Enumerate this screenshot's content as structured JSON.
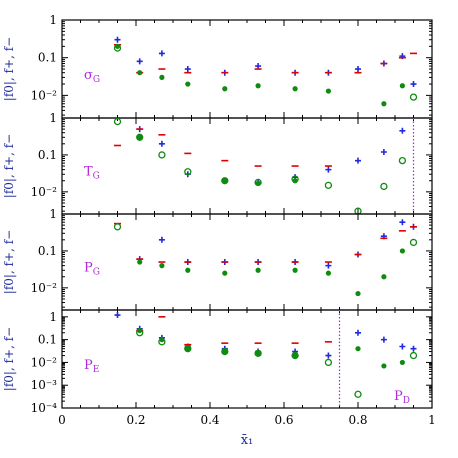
{
  "chart_data": [
    {
      "type": "scatter",
      "panel_label": "σ_G",
      "ylabel": "|f0|, f+, f−",
      "ylim_log10": [
        -2.6,
        0
      ],
      "ytick_labels": [
        "1",
        "0.1",
        "10⁻²"
      ],
      "ytick_values": [
        1,
        0.1,
        0.01
      ],
      "series": [
        {
          "marker": "plus",
          "color": "#1f2ae0",
          "x": [
            0.15,
            0.21,
            0.27,
            0.34,
            0.44,
            0.53,
            0.63,
            0.72,
            0.8,
            0.87,
            0.92,
            0.95
          ],
          "y": [
            0.3,
            0.08,
            0.13,
            0.05,
            0.04,
            0.06,
            0.04,
            0.04,
            0.05,
            0.07,
            0.11,
            0.02
          ]
        },
        {
          "marker": "dash",
          "color": "#e00000",
          "x": [
            0.15,
            0.21,
            0.27,
            0.34,
            0.44,
            0.53,
            0.63,
            0.72,
            0.8,
            0.87,
            0.92,
            0.95
          ],
          "y": [
            0.22,
            0.04,
            0.05,
            0.04,
            0.04,
            0.05,
            0.04,
            0.04,
            0.04,
            0.07,
            0.1,
            0.13
          ]
        },
        {
          "marker": "filled",
          "color": "#108a10",
          "x": [
            0.15,
            0.21,
            0.27,
            0.34,
            0.44,
            0.53,
            0.63,
            0.72,
            0.8,
            0.87,
            0.92
          ],
          "y": [
            0.2,
            0.04,
            0.03,
            0.02,
            0.015,
            0.018,
            0.015,
            0.013,
            0.002,
            0.006,
            0.018
          ]
        },
        {
          "marker": "open",
          "color": "#108a10",
          "x": [
            0.15,
            0.95
          ],
          "y": [
            0.18,
            0.009
          ]
        }
      ]
    },
    {
      "type": "scatter",
      "panel_label": "T_G",
      "ylabel": "|f0|, f+, f−",
      "ylim_log10": [
        -2.6,
        0
      ],
      "ytick_labels": [
        "1",
        "0.1",
        "10⁻²"
      ],
      "ytick_values": [
        1,
        0.1,
        0.01
      ],
      "vline_x": 0.95,
      "series": [
        {
          "marker": "plus",
          "color": "#1f2ae0",
          "x": [
            0.15,
            0.21,
            0.27,
            0.34,
            0.44,
            0.53,
            0.63,
            0.72,
            0.8,
            0.87,
            0.92,
            0.95
          ],
          "y": [
            1.8,
            0.5,
            0.2,
            0.03,
            0.02,
            0.018,
            0.025,
            0.04,
            0.07,
            0.12,
            0.45,
            1.2
          ]
        },
        {
          "marker": "dash",
          "color": "#e00000",
          "x": [
            0.15,
            0.21,
            0.27,
            0.34,
            0.44,
            0.53,
            0.63,
            0.72
          ],
          "y": [
            0.18,
            0.5,
            0.35,
            0.11,
            0.07,
            0.05,
            0.05,
            0.05
          ]
        },
        {
          "marker": "filled",
          "color": "#108a10",
          "x": [
            0.21,
            0.44,
            0.53,
            0.63
          ],
          "y": [
            0.3,
            0.02,
            0.017,
            0.02
          ]
        },
        {
          "marker": "open",
          "color": "#108a10",
          "x": [
            0.15,
            0.21,
            0.27,
            0.34,
            0.44,
            0.53,
            0.63,
            0.72,
            0.8,
            0.87,
            0.92
          ],
          "y": [
            0.8,
            0.3,
            0.1,
            0.035,
            0.02,
            0.018,
            0.022,
            0.015,
            0.003,
            0.014,
            0.07
          ]
        }
      ]
    },
    {
      "type": "scatter",
      "panel_label": "P_G",
      "ylabel": "|f0|, f+, f−",
      "ylim_log10": [
        -2.6,
        0
      ],
      "ytick_labels": [
        "1",
        "0.1",
        "10⁻²"
      ],
      "ytick_values": [
        1,
        0.1,
        0.01
      ],
      "series": [
        {
          "marker": "plus",
          "color": "#1f2ae0",
          "x": [
            0.15,
            0.21,
            0.27,
            0.34,
            0.44,
            0.53,
            0.63,
            0.72,
            0.8,
            0.87,
            0.92,
            0.95
          ],
          "y": [
            1.1,
            0.06,
            0.2,
            0.05,
            0.05,
            0.05,
            0.05,
            0.04,
            0.08,
            0.25,
            0.6,
            0.45
          ]
        },
        {
          "marker": "dash",
          "color": "#e00000",
          "x": [
            0.15,
            0.21,
            0.27,
            0.34,
            0.44,
            0.53,
            0.63,
            0.72,
            0.8,
            0.87,
            0.92,
            0.95
          ],
          "y": [
            0.55,
            0.06,
            0.05,
            0.05,
            0.05,
            0.05,
            0.05,
            0.05,
            0.08,
            0.22,
            0.35,
            0.45
          ]
        },
        {
          "marker": "filled",
          "color": "#108a10",
          "x": [
            0.21,
            0.27,
            0.34,
            0.44,
            0.53,
            0.63,
            0.72,
            0.8,
            0.87,
            0.92
          ],
          "y": [
            0.05,
            0.04,
            0.03,
            0.025,
            0.03,
            0.03,
            0.025,
            0.007,
            0.02,
            0.1
          ]
        },
        {
          "marker": "open",
          "color": "#108a10",
          "x": [
            0.15,
            0.95
          ],
          "y": [
            0.45,
            0.17
          ]
        }
      ]
    },
    {
      "type": "scatter",
      "panel_label": "P_E",
      "extra_label": "P_D",
      "ylabel": "|f0|, f+, f−",
      "ylim_log10": [
        -4,
        0.3
      ],
      "ytick_labels": [
        "1",
        "0.1",
        "10⁻²",
        "10⁻³",
        "10⁻⁴"
      ],
      "ytick_values": [
        1,
        0.1,
        0.01,
        0.001,
        0.0001
      ],
      "vline_x": 0.75,
      "xlabel": "x̄₁",
      "xtick_labels": [
        "0",
        "0.2",
        "0.4",
        "0.6",
        "0.8",
        "1"
      ],
      "xtick_values": [
        0,
        0.2,
        0.4,
        0.6,
        0.8,
        1
      ],
      "xlim": [
        0,
        1
      ],
      "series": [
        {
          "marker": "plus",
          "color": "#1f2ae0",
          "x": [
            0.15,
            0.21,
            0.27,
            0.34,
            0.44,
            0.53,
            0.63,
            0.72,
            0.8,
            0.87,
            0.92,
            0.95
          ],
          "y": [
            1.2,
            0.3,
            0.12,
            0.05,
            0.04,
            0.03,
            0.03,
            0.02,
            0.2,
            0.1,
            0.05,
            0.04
          ]
        },
        {
          "marker": "dash",
          "color": "#e00000",
          "x": [
            0.15,
            0.21,
            0.27,
            0.34,
            0.44,
            0.53,
            0.63,
            0.72
          ],
          "y": [
            2.5,
            0.25,
            1.0,
            0.06,
            0.07,
            0.07,
            0.07,
            0.08
          ]
        },
        {
          "marker": "filled",
          "color": "#108a10",
          "x": [
            0.15,
            0.21,
            0.27,
            0.34,
            0.44,
            0.53,
            0.63,
            0.8,
            0.87,
            0.92
          ],
          "y": [
            3.0,
            0.25,
            0.1,
            0.04,
            0.03,
            0.025,
            0.02,
            0.04,
            0.007,
            0.01
          ]
        },
        {
          "marker": "open",
          "color": "#108a10",
          "x": [
            0.21,
            0.27,
            0.34,
            0.44,
            0.53,
            0.63,
            0.72,
            0.8,
            0.95
          ],
          "y": [
            0.2,
            0.08,
            0.04,
            0.03,
            0.025,
            0.02,
            0.01,
            0.0004,
            0.02
          ]
        }
      ]
    }
  ]
}
